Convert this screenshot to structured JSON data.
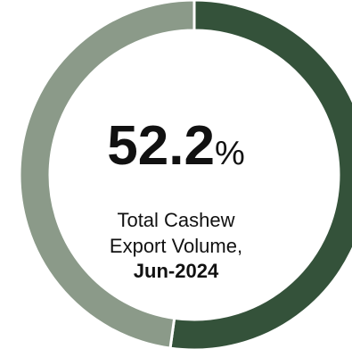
{
  "chart_data": {
    "type": "pie",
    "variant": "donut",
    "series": [
      {
        "name": "",
        "value": 52.2,
        "color": "#34523A"
      },
      {
        "name": "",
        "value": 47.8,
        "color": "#8B9A89"
      }
    ],
    "center": {
      "value": "52.2",
      "unit": "%",
      "line1": "Total Cashew",
      "line2": "Export Volume,",
      "line3": "Jun-2024"
    }
  }
}
